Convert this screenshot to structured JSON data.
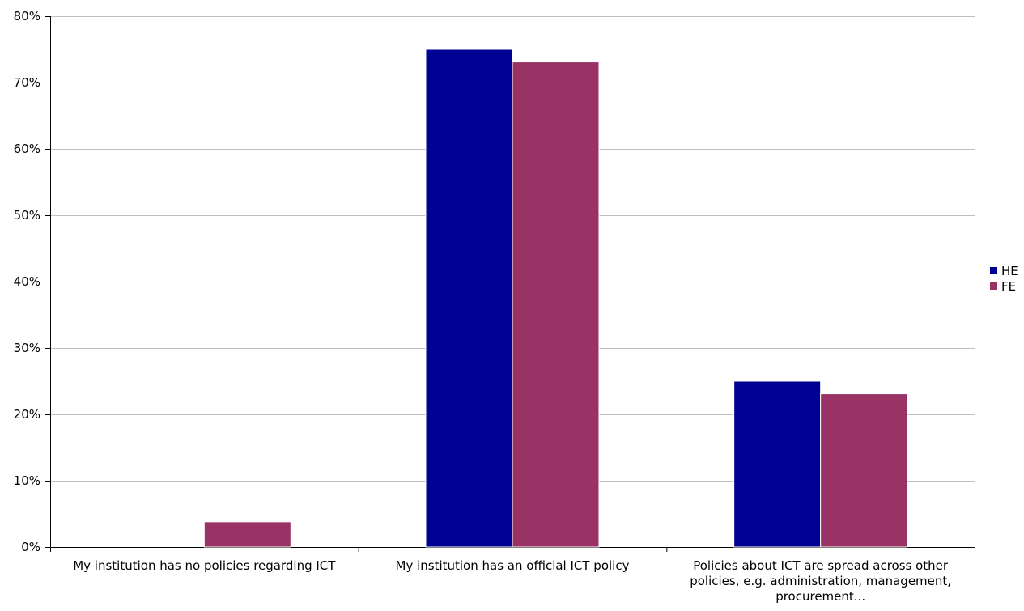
{
  "chart_data": {
    "type": "bar",
    "categories": [
      "My institution has no policies regarding ICT",
      "My institution has an official ICT policy",
      "Policies about ICT are spread across other policies, e.g. administration, management, procurement..."
    ],
    "series": [
      {
        "name": "HE",
        "color": "#000092",
        "values": [
          0,
          75,
          25
        ]
      },
      {
        "name": "FE",
        "color": "#993366",
        "values": [
          3.8,
          73.1,
          23.1
        ]
      }
    ],
    "y_unit": "%",
    "ylim": [
      0,
      80
    ],
    "yticks": [
      0,
      10,
      20,
      30,
      40,
      50,
      60,
      70,
      80
    ],
    "ytick_labels": [
      "0%",
      "10%",
      "20%",
      "30%",
      "40%",
      "50%",
      "60%",
      "70%",
      "80%"
    ],
    "grid": true,
    "legend_position": "right",
    "title": "",
    "xlabel": "",
    "ylabel": ""
  }
}
